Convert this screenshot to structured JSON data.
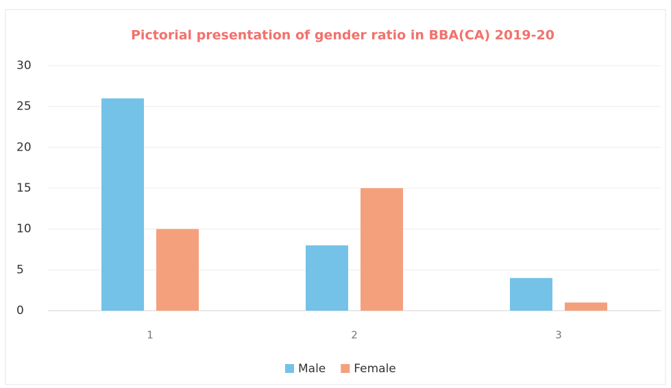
{
  "chart_data": {
    "type": "bar",
    "title": "Pictorial presentation of gender ratio in BBA(CA) 2019-20",
    "categories": [
      "1",
      "2",
      "3"
    ],
    "series": [
      {
        "name": "Male",
        "color": "#74c2e8",
        "values": [
          26,
          8,
          4
        ]
      },
      {
        "name": "Female",
        "color": "#f4a07d",
        "values": [
          10,
          15,
          1
        ]
      }
    ],
    "ylim": [
      0,
      30
    ],
    "yticks": [
      0,
      5,
      10,
      15,
      20,
      25,
      30
    ],
    "grid": true,
    "legend": "bottom"
  }
}
